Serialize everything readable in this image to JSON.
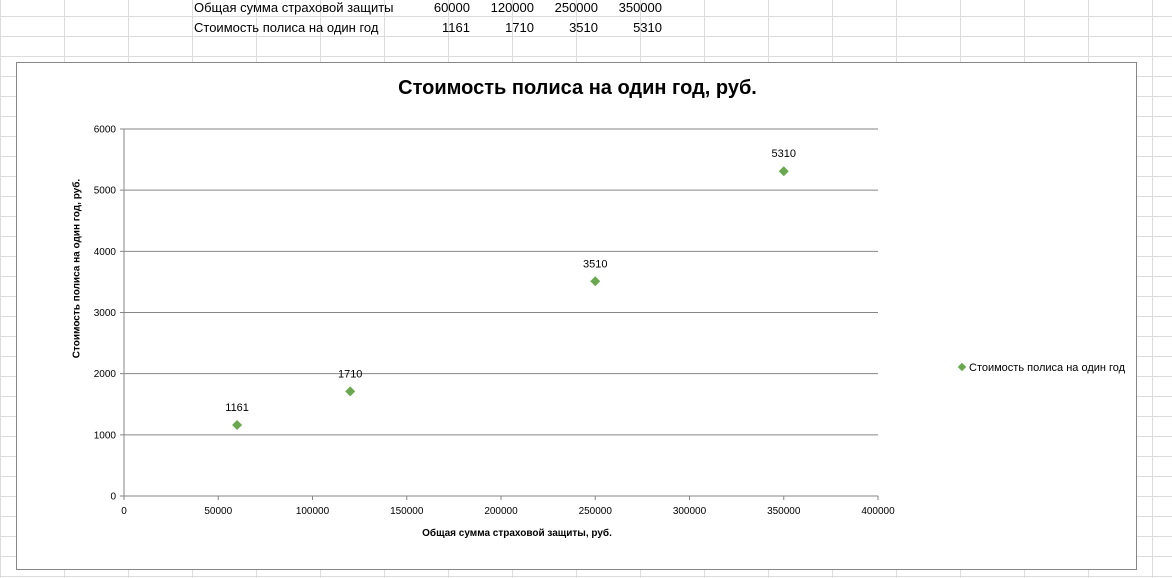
{
  "sheet": {
    "rows": [
      {
        "label": "Общая сумма страховой защиты",
        "values": [
          "60000",
          "120000",
          "250000",
          "350000"
        ]
      },
      {
        "label": "Стоимость полиса на один год",
        "values": [
          "1161",
          "1710",
          "3510",
          "5310"
        ]
      }
    ]
  },
  "chart_data": {
    "type": "scatter",
    "title": "Стоимость полиса на один год, руб.",
    "xlabel": "Общая сумма страховой защиты,  руб.",
    "ylabel": "Стоимость  полиса  на один год, руб.",
    "xlim": [
      0,
      400000
    ],
    "ylim": [
      0,
      6000
    ],
    "x_ticks": [
      "0",
      "50000",
      "100000",
      "150000",
      "200000",
      "250000",
      "300000",
      "350000",
      "400000"
    ],
    "y_ticks": [
      "0",
      "1000",
      "2000",
      "3000",
      "4000",
      "5000",
      "6000"
    ],
    "grid": "horizontal",
    "legend_position": "right",
    "series": [
      {
        "name": "Стоимость полиса на один год",
        "color": "#6aa84f",
        "marker": "diamond",
        "points": [
          {
            "x": 60000,
            "y": 1161,
            "label": "1161"
          },
          {
            "x": 120000,
            "y": 1710,
            "label": "1710"
          },
          {
            "x": 250000,
            "y": 3510,
            "label": "3510"
          },
          {
            "x": 350000,
            "y": 5310,
            "label": "5310"
          }
        ]
      }
    ]
  }
}
